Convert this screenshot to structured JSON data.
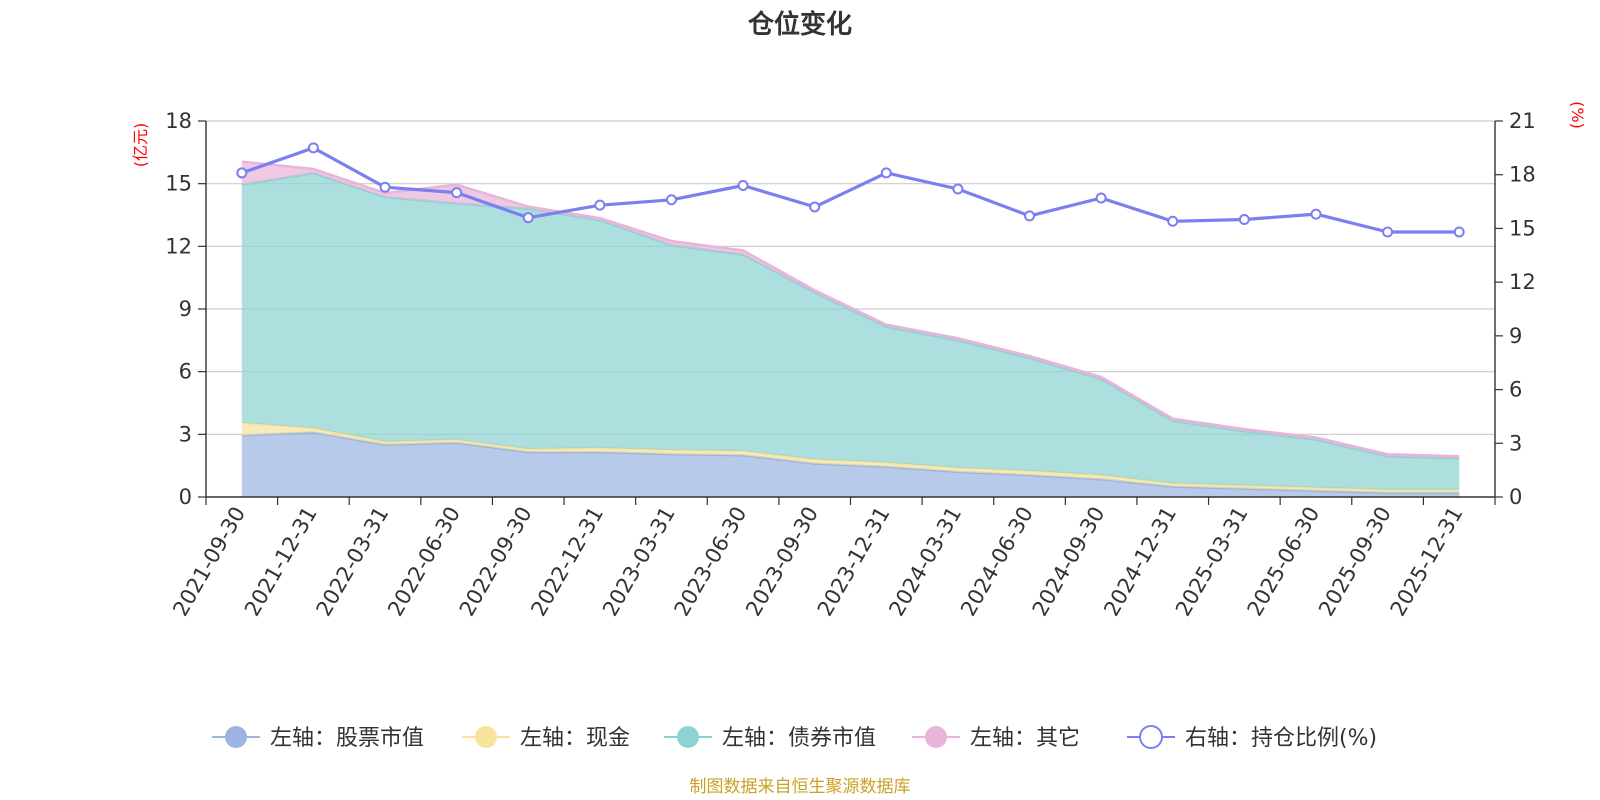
{
  "chart_data": {
    "type": "area",
    "title": "仓位变化",
    "left_unit": "(亿元)",
    "right_unit": "(%)",
    "source": "制图数据来自恒生聚源数据库",
    "categories": [
      "2021-09-30",
      "2021-12-31",
      "2022-03-31",
      "2022-06-30",
      "2022-09-30",
      "2022-12-31",
      "2023-03-31",
      "2023-06-30",
      "2023-09-30",
      "2023-12-31",
      "2024-03-31",
      "2024-06-30",
      "2024-09-30",
      "2024-12-31",
      "2025-03-31",
      "2025-06-30",
      "2025-09-30",
      "2025-12-31"
    ],
    "left_ticks": [
      "0",
      "3",
      "6",
      "9",
      "12",
      "15",
      "18"
    ],
    "right_ticks": [
      "0",
      "3",
      "6",
      "9",
      "12",
      "15",
      "18",
      "21"
    ],
    "ylim_left": [
      0,
      18
    ],
    "ylim_right": [
      0,
      21
    ],
    "series": [
      {
        "name": "左轴：股票市值",
        "axis": "left",
        "color": "#9bb5e0",
        "values": [
          2.95,
          3.1,
          2.5,
          2.6,
          2.15,
          2.15,
          2.05,
          2.0,
          1.6,
          1.45,
          1.2,
          1.05,
          0.85,
          0.5,
          0.4,
          0.3,
          0.2,
          0.2
        ]
      },
      {
        "name": "左轴：现金",
        "axis": "left",
        "color": "#f7e39e",
        "values": [
          0.6,
          0.2,
          0.15,
          0.15,
          0.15,
          0.2,
          0.2,
          0.2,
          0.2,
          0.2,
          0.2,
          0.2,
          0.2,
          0.15,
          0.15,
          0.15,
          0.15,
          0.15
        ]
      },
      {
        "name": "左轴：债券市值",
        "axis": "left",
        "color": "#8ed3d3",
        "values": [
          11.4,
          12.2,
          11.7,
          11.3,
          11.5,
          10.9,
          9.8,
          9.4,
          8.0,
          6.5,
          6.1,
          5.4,
          4.6,
          3.0,
          2.6,
          2.3,
          1.6,
          1.5
        ]
      },
      {
        "name": "左轴：其它",
        "axis": "left",
        "color": "#e9b4da",
        "values": [
          1.1,
          0.2,
          0.2,
          0.9,
          0.1,
          0.1,
          0.2,
          0.2,
          0.1,
          0.1,
          0.1,
          0.1,
          0.1,
          0.1,
          0.1,
          0.1,
          0.1,
          0.1
        ]
      },
      {
        "name": "右轴：持仓比例(%)",
        "axis": "right",
        "color": "#7b7fef",
        "values": [
          18.1,
          19.5,
          17.3,
          17.0,
          15.6,
          16.3,
          16.6,
          17.4,
          16.2,
          18.1,
          17.2,
          15.7,
          16.7,
          15.4,
          15.5,
          15.8,
          14.8,
          14.8
        ]
      }
    ]
  }
}
